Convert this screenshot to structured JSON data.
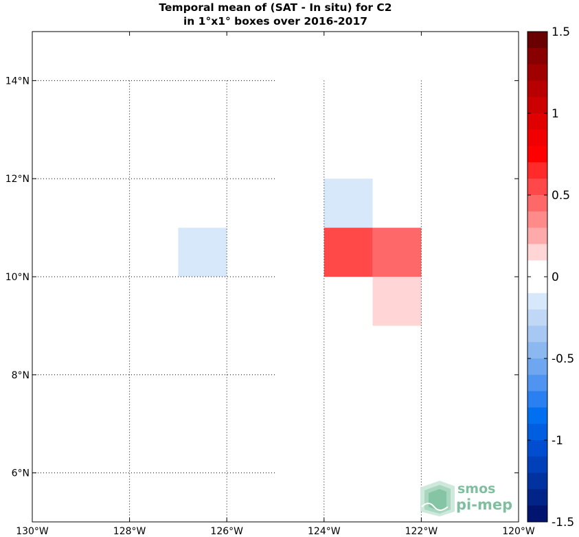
{
  "title_line1": "Temporal mean of (SAT - In situ) for C2",
  "title_line2": "in 1°x1° boxes over 2016-2017",
  "logo": {
    "line1": "smos",
    "line2": "pi-mep"
  },
  "colors": {
    "grid": "#000000",
    "frame": "#000000"
  },
  "chart_data": {
    "type": "heatmap",
    "title": "Temporal mean of (SAT - In situ) for C2 in 1°x1° boxes over 2016-2017",
    "xlim": [
      -130,
      -120
    ],
    "ylim": [
      5,
      15
    ],
    "x_ticks": [
      -130,
      -128,
      -126,
      -124,
      -122,
      -120
    ],
    "x_tick_labels": [
      "130°W",
      "128°W",
      "126°W",
      "124°W",
      "122°W",
      "120°W"
    ],
    "y_ticks": [
      6,
      8,
      10,
      12,
      14
    ],
    "y_tick_labels": [
      "6°N",
      "8°N",
      "10°N",
      "12°N",
      "14°N"
    ],
    "grid": true,
    "grid_extent": {
      "lon_max": -125,
      "lat_max": 14
    },
    "cells": [
      {
        "lon": -127,
        "lat": 10,
        "value": -0.1
      },
      {
        "lon": -124,
        "lat": 11,
        "value": -0.1
      },
      {
        "lon": -124,
        "lat": 10,
        "value": 0.6
      },
      {
        "lon": -123,
        "lat": 10,
        "value": 0.5
      },
      {
        "lon": -123,
        "lat": 9,
        "value": 0.1
      }
    ],
    "colorbar": {
      "range": [
        -1.5,
        1.5
      ],
      "ticks": [
        1.5,
        1,
        0.5,
        0,
        -0.5,
        -1,
        -1.5
      ],
      "tick_labels": [
        "1.5",
        "1",
        "0.5",
        "0",
        "-0.5",
        "-1",
        "-1.5"
      ],
      "colors": [
        "#6b0000",
        "#880000",
        "#a00000",
        "#b80000",
        "#cc0000",
        "#e00000",
        "#f00000",
        "#ff0000",
        "#ff2a2a",
        "#ff4848",
        "#ff6868",
        "#ff8a8a",
        "#ffaaaa",
        "#ffd5d5",
        "#ffffff",
        "#ffffff",
        "#d8e8fb",
        "#c0d8f5",
        "#a6c8f3",
        "#8cb8f0",
        "#6ea6f0",
        "#4e94f0",
        "#2a80f0",
        "#0070f0",
        "#005ee0",
        "#004ecf",
        "#0040b8",
        "#0032a0",
        "#002488",
        "#001470"
      ]
    }
  }
}
